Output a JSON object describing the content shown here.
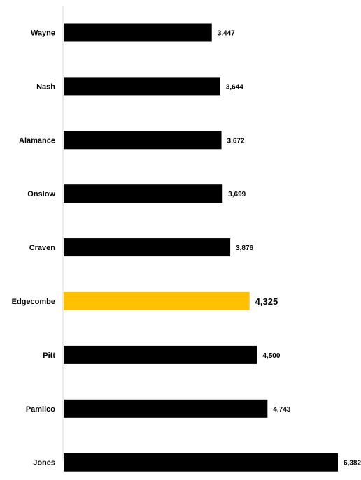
{
  "chart_data": {
    "type": "bar",
    "orientation": "horizontal",
    "categories": [
      "Wayne",
      "Nash",
      "Alamance",
      "Onslow",
      "Craven",
      "Edgecombe",
      "Pitt",
      "Pamlico",
      "Jones"
    ],
    "values": [
      3447,
      3644,
      3672,
      3699,
      3876,
      4325,
      4500,
      4743,
      6382
    ],
    "value_labels": [
      "3,447",
      "3,644",
      "3,672",
      "3,699",
      "3,876",
      "4,325",
      "4,500",
      "4,743",
      "6,382"
    ],
    "highlight": "Edgecombe",
    "xlim": [
      0,
      6382
    ],
    "grid": false,
    "legend": "none"
  },
  "colors": {
    "bar": "#000000",
    "highlight": "#FFC000",
    "axis": "#d9d9d9"
  }
}
